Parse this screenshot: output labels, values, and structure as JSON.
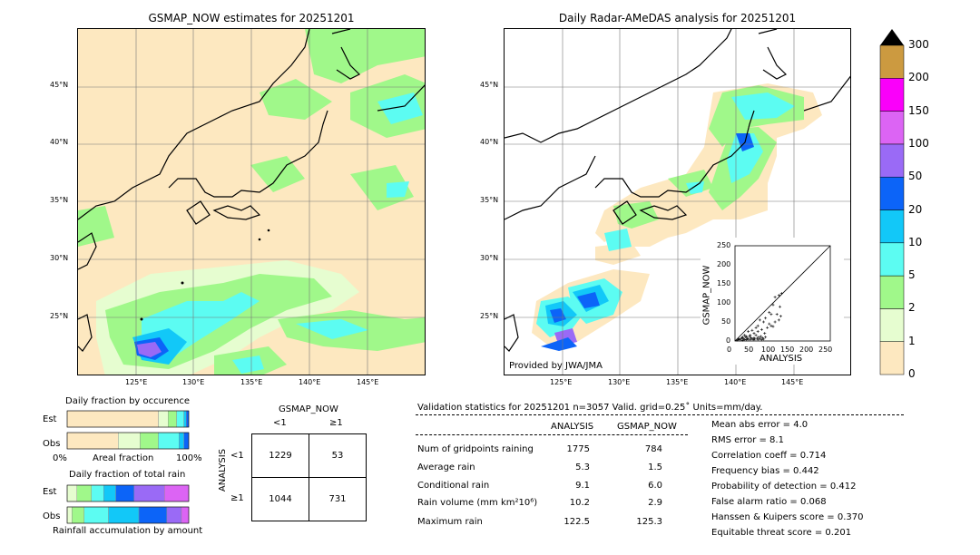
{
  "left_map": {
    "title": "GSMAP_NOW estimates for 20251201",
    "lat_labels": [
      "45°N",
      "40°N",
      "35°N",
      "30°N",
      "25°N"
    ],
    "lon_labels": [
      "125°E",
      "130°E",
      "135°E",
      "140°E",
      "145°E"
    ]
  },
  "right_map": {
    "title": "Daily Radar-AMeDAS analysis for 20251201",
    "lat_labels": [
      "45°N",
      "40°N",
      "35°N",
      "30°N",
      "25°N"
    ],
    "lon_labels": [
      "125°E",
      "130°E",
      "135°E",
      "140°E",
      "145°E"
    ],
    "credit": "Provided by JWA/JMA"
  },
  "colorbar": {
    "labels": [
      "0",
      "1",
      "2",
      "5",
      "10",
      "20",
      "50",
      "100",
      "150",
      "200",
      "300"
    ],
    "colors": [
      "#fde8c0",
      "#e6fdd0",
      "#a0f88a",
      "#5cfcf2",
      "#12c8f8",
      "#0c64f8",
      "#9a6af6",
      "#dc64f4",
      "#fa00fa",
      "#cc9a40"
    ],
    "extend_color": "#000000"
  },
  "scatter": {
    "xlabel": "ANALYSIS",
    "ylabel": "GSMAP_NOW",
    "ticks": [
      "0",
      "50",
      "100",
      "150",
      "200",
      "250"
    ]
  },
  "occurrence": {
    "title": "Daily fraction by occurence",
    "row_est": "Est",
    "row_obs": "Obs",
    "axis_left": "0%",
    "axis_mid": "Areal fraction",
    "axis_right": "100%"
  },
  "total_rain": {
    "title": "Daily fraction of total rain",
    "row_est": "Est",
    "row_obs": "Obs",
    "axis_label": "Rainfall accumulation by amount"
  },
  "contingency": {
    "col_header": "GSMAP_NOW",
    "col_lt": "<1",
    "col_ge": "≥1",
    "row_header": "ANALYSIS",
    "row_lt": "<1",
    "row_ge": "≥1",
    "cells": [
      "1229",
      "53",
      "1044",
      "731"
    ]
  },
  "validation": {
    "header": "Validation statistics for 20251201  n=3057 Valid. grid=0.25˚ Units=mm/day.",
    "col_analysis": "ANALYSIS",
    "col_gsmap": "GSMAP_NOW",
    "rows": [
      {
        "label": "Num of gridpoints raining",
        "analysis": "1775",
        "gsmap": "784"
      },
      {
        "label": "Average rain",
        "analysis": "5.3",
        "gsmap": "1.5"
      },
      {
        "label": "Conditional rain",
        "analysis": "9.1",
        "gsmap": "6.0"
      },
      {
        "label": "Rain volume (mm km²10⁶)",
        "analysis": "10.2",
        "gsmap": "2.9"
      },
      {
        "label": "Maximum rain",
        "analysis": "122.5",
        "gsmap": "125.3"
      }
    ],
    "scores": [
      "Mean abs error =    4.0",
      "RMS error =    8.1",
      "Correlation coeff =  0.714",
      "Frequency bias =  0.442",
      "Probability of detection =  0.412",
      "False alarm ratio =  0.068",
      "Hanssen & Kuipers score =  0.370",
      "Equitable threat score =  0.201"
    ]
  },
  "chart_data": [
    {
      "type": "scatter",
      "title": "",
      "xlabel": "ANALYSIS",
      "ylabel": "GSMAP_NOW",
      "xlim": [
        0,
        250
      ],
      "ylim": [
        0,
        250
      ],
      "x_ticks": [
        0,
        50,
        100,
        150,
        200,
        250
      ],
      "y_ticks": [
        0,
        50,
        100,
        150,
        200,
        250
      ],
      "points": [
        [
          5,
          2
        ],
        [
          8,
          4
        ],
        [
          10,
          6
        ],
        [
          12,
          3
        ],
        [
          15,
          5
        ],
        [
          18,
          8
        ],
        [
          20,
          2
        ],
        [
          22,
          6
        ],
        [
          25,
          4
        ],
        [
          28,
          10
        ],
        [
          30,
          3
        ],
        [
          32,
          7
        ],
        [
          35,
          5
        ],
        [
          38,
          12
        ],
        [
          40,
          4
        ],
        [
          42,
          9
        ],
        [
          45,
          6
        ],
        [
          48,
          3
        ],
        [
          50,
          8
        ],
        [
          52,
          5
        ],
        [
          55,
          15
        ],
        [
          58,
          7
        ],
        [
          60,
          4
        ],
        [
          62,
          10
        ],
        [
          65,
          6
        ],
        [
          68,
          12
        ],
        [
          70,
          3
        ],
        [
          72,
          8
        ],
        [
          75,
          5
        ],
        [
          78,
          20
        ],
        [
          80,
          10
        ],
        [
          40,
          15
        ],
        [
          50,
          20
        ],
        [
          60,
          25
        ],
        [
          70,
          30
        ],
        [
          30,
          12
        ],
        [
          20,
          10
        ],
        [
          85,
          35
        ],
        [
          90,
          45
        ],
        [
          95,
          40
        ],
        [
          100,
          38
        ],
        [
          105,
          50
        ],
        [
          110,
          70
        ],
        [
          115,
          55
        ],
        [
          120,
          65
        ],
        [
          60,
          40
        ],
        [
          75,
          50
        ],
        [
          80,
          60
        ],
        [
          90,
          75
        ],
        [
          100,
          95
        ],
        [
          105,
          115
        ],
        [
          115,
          120
        ],
        [
          122,
          125
        ],
        [
          118,
          90
        ],
        [
          95,
          70
        ],
        [
          65,
          55
        ],
        [
          55,
          35
        ],
        [
          35,
          25
        ],
        [
          45,
          28
        ],
        [
          25,
          15
        ]
      ],
      "diagonal": true
    },
    {
      "type": "bar",
      "title": "Daily fraction by occurence",
      "orientation": "horizontal-stacked",
      "categories": [
        "Est",
        "Obs"
      ],
      "series": [
        {
          "color": "#fde8c0",
          "values": [
            0.75,
            0.42
          ]
        },
        {
          "color": "#e6fdd0",
          "values": [
            0.08,
            0.18
          ]
        },
        {
          "color": "#a0f88a",
          "values": [
            0.07,
            0.15
          ]
        },
        {
          "color": "#5cfcf2",
          "values": [
            0.06,
            0.17
          ]
        },
        {
          "color": "#12c8f8",
          "values": [
            0.02,
            0.04
          ]
        },
        {
          "color": "#0c64f8",
          "values": [
            0.02,
            0.04
          ]
        }
      ],
      "xlim": [
        0,
        1
      ]
    },
    {
      "type": "bar",
      "title": "Daily fraction of total rain",
      "orientation": "horizontal-stacked",
      "categories": [
        "Est",
        "Obs"
      ],
      "series": [
        {
          "color": "#e6fdd0",
          "values": [
            0.08,
            0.04
          ]
        },
        {
          "color": "#a0f88a",
          "values": [
            0.12,
            0.1
          ]
        },
        {
          "color": "#5cfcf2",
          "values": [
            0.1,
            0.2
          ]
        },
        {
          "color": "#12c8f8",
          "values": [
            0.1,
            0.25
          ]
        },
        {
          "color": "#0c64f8",
          "values": [
            0.15,
            0.23
          ]
        },
        {
          "color": "#9a6af6",
          "values": [
            0.25,
            0.12
          ]
        },
        {
          "color": "#dc64f4",
          "values": [
            0.2,
            0.06
          ]
        }
      ],
      "xlim": [
        0,
        1
      ]
    }
  ]
}
